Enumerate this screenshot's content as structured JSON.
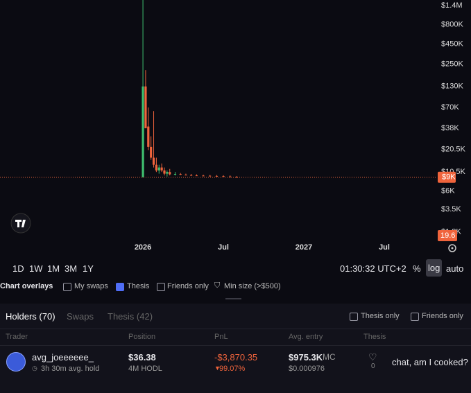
{
  "chart_data": {
    "type": "candlestick",
    "log_scale": true,
    "x": [
      0,
      0.2,
      0.4,
      0.6,
      0.8,
      1.0,
      1.2,
      1.4,
      1.6,
      1.8,
      2.0,
      2.4,
      2.8,
      3.2,
      3.6,
      4.0,
      4.5,
      5.0,
      5.5,
      6.0,
      6.5,
      7.0
    ],
    "open": [
      9000,
      130000,
      40000,
      22000,
      16000,
      13000,
      11000,
      12000,
      11000,
      10000,
      10500,
      9800,
      9900,
      9700,
      9600,
      9500,
      9450,
      9400,
      9350,
      9300,
      9200,
      9100
    ],
    "high": [
      1650000,
      210000,
      70000,
      30000,
      63000,
      16000,
      13000,
      13500,
      12000,
      11000,
      11500,
      10500,
      10200,
      10000,
      9900,
      9800,
      9700,
      9650,
      9600,
      9550,
      9500,
      9300
    ],
    "low": [
      9000,
      38000,
      20000,
      15000,
      12000,
      10500,
      10000,
      10500,
      9500,
      9200,
      9500,
      9500,
      9600,
      9500,
      9400,
      9350,
      9300,
      9250,
      9200,
      9100,
      9000,
      8900
    ],
    "close": [
      130000,
      38000,
      22000,
      16000,
      13000,
      11000,
      12000,
      11000,
      10000,
      10500,
      9800,
      9900,
      9700,
      9600,
      9500,
      9450,
      9400,
      9350,
      9300,
      9200,
      9100,
      9000
    ],
    "up_color": "#3fbf6f",
    "down_color": "#f0643c",
    "xlim": [
      -10.66,
      21.93
    ],
    "xticks": [
      {
        "value": 0,
        "label": "2026"
      },
      {
        "value": 6,
        "label": "Jul"
      },
      {
        "value": 12,
        "label": "2027"
      },
      {
        "value": 18,
        "label": "Jul"
      }
    ],
    "ylim": [
      1460,
      1650000
    ],
    "yticks": [
      {
        "value": 1400000,
        "label": "$1.4M"
      },
      {
        "value": 800000,
        "label": "$800K"
      },
      {
        "value": 450000,
        "label": "$450K"
      },
      {
        "value": 250000,
        "label": "$250K"
      },
      {
        "value": 130000,
        "label": "$130K"
      },
      {
        "value": 70000,
        "label": "$70K"
      },
      {
        "value": 38000,
        "label": "$38K"
      },
      {
        "value": 20500,
        "label": "$20.5K"
      },
      {
        "value": 10500,
        "label": "$10.5K"
      },
      {
        "value": 6000,
        "label": "$6K"
      },
      {
        "value": 3500,
        "label": "$3.5K"
      },
      {
        "value": 1800,
        "label": "$1.8K"
      }
    ],
    "price_line": {
      "value": 9000,
      "label": "$9K"
    },
    "volume_badge": "19.6"
  },
  "toolbar": {
    "timeframes": [
      "1D",
      "1W",
      "1M",
      "3M",
      "1Y"
    ],
    "clock": "01:30:32 UTC+2",
    "percent": "%",
    "log": "log",
    "auto": "auto"
  },
  "overlays": {
    "label": "Chart overlays",
    "options": [
      {
        "label": "My swaps",
        "checked": false
      },
      {
        "label": "Thesis",
        "checked": true
      },
      {
        "label": "Friends only",
        "checked": false
      }
    ],
    "min_size": "Min size (>$500)"
  },
  "tabs": [
    "Holders (70)",
    "Swaps",
    "Thesis (42)"
  ],
  "filters": [
    "Thesis only",
    "Friends only"
  ],
  "table": {
    "columns": [
      "Trader",
      "Position",
      "PnL",
      "Avg. entry",
      "Thesis"
    ],
    "rows": [
      {
        "trader": "avg_joeeeeee_",
        "hold": "3h 30m avg. hold",
        "position": "$36.38",
        "position_sub": "4M HODL",
        "pnl": "-$3,870.35",
        "pnl_pct": "99.07%",
        "avg_entry": "$975.3K",
        "avg_entry_unit": "MC",
        "avg_price": "$0.000976",
        "likes": "0",
        "thesis": "chat, am I cooked?"
      }
    ]
  }
}
